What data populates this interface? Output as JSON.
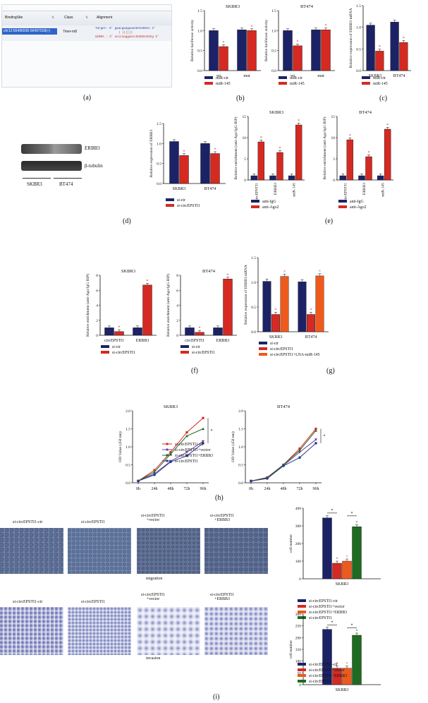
{
  "panel_labels": {
    "a": "(a)",
    "b": "(b)",
    "c": "(c)",
    "d": "(d)",
    "e": "(e)",
    "f": "(f)",
    "g": "(g)",
    "h": "(h)",
    "i": "(i)"
  },
  "panel_a": {
    "headers": {
      "site": "BindingSite",
      "class": "Class",
      "alignment": "Alignment"
    },
    "row": {
      "site": "chr12:56496936-56497018[+]",
      "class": "7mer-m8"
    },
    "target_line": "Target: 5' gaacgaagaaaAUACUGGAc 3'",
    "pairs": "| ||||||",
    "mirna_line": "miRNA : 3' ucccuaggaaccUUGGGACUCg 5'"
  },
  "panel_d": {
    "bands": [
      "ERBB3",
      "β-tubulin"
    ],
    "lanes": [
      "SKBR3",
      "BT474"
    ]
  },
  "panel_i": {
    "conditions": [
      "si-circEPSTI1-ctr",
      "si-circEPSTI1",
      "si-circEPSTI1\n+vector",
      "si-circEPSTI1\n+ERBB3"
    ],
    "row_labels": [
      "migration",
      "invasion"
    ]
  },
  "colors": {
    "navy": "#1c2266",
    "red": "#d42a22",
    "orange": "#ee5a1c",
    "green": "#1f6b22",
    "violet": "#6a3fa0",
    "blue": "#2c3d8f",
    "black": "#111111"
  },
  "chart_data": [
    {
      "id": "b1",
      "type": "bar",
      "title": "SKBR3",
      "ylabel": "Relative luciferase activity",
      "categories": [
        "wt",
        "mut"
      ],
      "ylim": [
        0,
        1.5
      ],
      "series": [
        {
          "name": "miR-ctr",
          "values": [
            1.0,
            1.02
          ]
        },
        {
          "name": "miR-145",
          "values": [
            0.6,
            1.0
          ]
        }
      ],
      "sig": "*"
    },
    {
      "id": "b2",
      "type": "bar",
      "title": "BT474",
      "ylabel": "Relative luciferase activity",
      "categories": [
        "wt",
        "mut"
      ],
      "ylim": [
        0,
        1.5
      ],
      "series": [
        {
          "name": "miR-ctr",
          "values": [
            1.0,
            1.02
          ]
        },
        {
          "name": "miR-145",
          "values": [
            0.62,
            1.02
          ]
        }
      ],
      "sig": "*"
    },
    {
      "id": "c",
      "type": "bar",
      "title": "",
      "ylabel": "Relative expression of ERBB3 mRNA",
      "categories": [
        "SKBR3",
        "BT474"
      ],
      "ylim": [
        0,
        1.5
      ],
      "series": [
        {
          "name": "miR-ctr",
          "values": [
            1.05,
            1.12
          ]
        },
        {
          "name": "miR-145",
          "values": [
            0.45,
            0.65
          ]
        }
      ],
      "sig": "*"
    },
    {
      "id": "d",
      "type": "bar",
      "title": "",
      "ylabel": "Relative expression of ERBB3",
      "categories": [
        "SKBR3",
        "BT474"
      ],
      "ylim": [
        0,
        1.5
      ],
      "series": [
        {
          "name": "si-ctr",
          "values": [
            1.05,
            1.0
          ]
        },
        {
          "name": "si-circEPSTI1",
          "values": [
            0.7,
            0.75
          ]
        }
      ],
      "sig": "*"
    },
    {
      "id": "e1",
      "type": "bar",
      "title": "SKBR3",
      "ylabel": "Relative enrichment (anti-Ago/IgG RIP)",
      "categories": [
        "circEPSTI1",
        "ERBB3",
        "miR-145"
      ],
      "ylim": [
        0,
        15
      ],
      "series": [
        {
          "name": "anti-IgG",
          "values": [
            1,
            1,
            1
          ]
        },
        {
          "name": "anti-Ago2",
          "values": [
            9,
            6.5,
            13
          ]
        }
      ],
      "sig": "*"
    },
    {
      "id": "e2",
      "type": "bar",
      "title": "BT474",
      "ylabel": "Relative enrichment (anti-Ago/IgG RIP)",
      "categories": [
        "circEPSTI1",
        "ERBB3",
        "miR-145"
      ],
      "ylim": [
        0,
        15
      ],
      "series": [
        {
          "name": "anti-IgG",
          "values": [
            1,
            1,
            1
          ]
        },
        {
          "name": "anti-Ago2",
          "values": [
            9.5,
            5.5,
            12
          ]
        }
      ],
      "sig": "*"
    },
    {
      "id": "f1",
      "type": "bar",
      "title": "SKBR3",
      "ylabel": "Relative enrichment (anti-Ago/IgG RIP)",
      "categories": [
        "circEPSTI1",
        "ERBB3"
      ],
      "ylim": [
        0,
        8
      ],
      "series": [
        {
          "name": "si-ctr",
          "values": [
            1.0,
            1.0
          ]
        },
        {
          "name": "si-circEPSTI1",
          "values": [
            0.5,
            6.7
          ]
        }
      ],
      "sig": "*"
    },
    {
      "id": "f2",
      "type": "bar",
      "title": "BT474",
      "ylabel": "Relative enrichment (anti-Ago/IgG RIP)",
      "categories": [
        "circEPSTI1",
        "ERBB3"
      ],
      "ylim": [
        0,
        8
      ],
      "series": [
        {
          "name": "si-ctr",
          "values": [
            1.0,
            1.0
          ]
        },
        {
          "name": "si-circEPSTI1",
          "values": [
            0.4,
            7.5
          ]
        }
      ],
      "sig": "*"
    },
    {
      "id": "g",
      "type": "bar",
      "title": "",
      "ylabel": "Relative expression of ERBB3 mRNA",
      "categories": [
        "SKBR3",
        "BT474"
      ],
      "ylim": [
        0,
        1.5
      ],
      "series": [
        {
          "name": "si-ctr",
          "values": [
            1.02,
            1.01
          ]
        },
        {
          "name": "si-circEPSTI1",
          "values": [
            0.35,
            0.35
          ]
        },
        {
          "name": "si-circEPSTI1+LNA-miR-145",
          "values": [
            1.12,
            1.13
          ]
        }
      ],
      "sig": "*"
    },
    {
      "id": "h1",
      "type": "line",
      "title": "SKBR3",
      "ylabel": "OD Value (450 nm)",
      "x": [
        "0h",
        "24h",
        "48h",
        "72h",
        "96h"
      ],
      "ylim": [
        0,
        2.0
      ],
      "series": [
        {
          "name": "si-circEPSTI1-ctr",
          "values": [
            0.05,
            0.35,
            0.85,
            1.4,
            1.8
          ]
        },
        {
          "name": "si-circEPSTI1+vector",
          "values": [
            0.05,
            0.25,
            0.6,
            0.85,
            1.15
          ]
        },
        {
          "name": "si-circEPSTI1+ERBB3",
          "values": [
            0.05,
            0.3,
            0.8,
            1.3,
            1.5
          ]
        },
        {
          "name": "si-circEPSTI1",
          "values": [
            0.05,
            0.22,
            0.58,
            0.75,
            1.1
          ]
        }
      ],
      "sig": "*"
    },
    {
      "id": "h2",
      "type": "line",
      "title": "BT474",
      "ylabel": "OD Value (450 nm)",
      "x": [
        "0h",
        "24h",
        "48h",
        "72h",
        "96h"
      ],
      "ylim": [
        0,
        2.0
      ],
      "series": [
        {
          "name": "si-circEPSTI1-ctr",
          "values": [
            0.05,
            0.15,
            0.5,
            0.95,
            1.5
          ]
        },
        {
          "name": "si-circEPSTI1+vector",
          "values": [
            0.05,
            0.12,
            0.48,
            0.85,
            1.2
          ]
        },
        {
          "name": "si-circEPSTI1+ERBB3",
          "values": [
            0.05,
            0.14,
            0.5,
            0.9,
            1.45
          ]
        },
        {
          "name": "si-circEPSTI1",
          "values": [
            0.05,
            0.12,
            0.47,
            0.7,
            1.1
          ]
        }
      ],
      "sig": "*"
    },
    {
      "id": "i1",
      "type": "bar",
      "title": "",
      "ylabel": "cell number",
      "categories": [
        "SKBR3"
      ],
      "ylim": [
        0,
        400
      ],
      "series": [
        {
          "name": "si-circEPSTI1-ctr",
          "values": [
            345
          ]
        },
        {
          "name": "si-circEPSTI1+vector",
          "values": [
            88
          ]
        },
        {
          "name": "si-circEPSTI1+ERBB3",
          "values": [
            100
          ]
        },
        {
          "name": "si-circEPSTI1",
          "values": [
            295
          ]
        }
      ],
      "sig": "*"
    },
    {
      "id": "i2",
      "type": "bar",
      "title": "",
      "ylabel": "cell number",
      "categories": [
        "SKBR3"
      ],
      "ylim": [
        0,
        300
      ],
      "series": [
        {
          "name": "si-circEPSTI1-ctr",
          "values": [
            235
          ]
        },
        {
          "name": "si-circEPSTI1+vector",
          "values": [
            70
          ]
        },
        {
          "name": "si-circEPSTI1+ERBB3",
          "values": [
            70
          ]
        },
        {
          "name": "si-circEPSTI1",
          "values": [
            210
          ]
        }
      ],
      "sig": "*"
    }
  ]
}
